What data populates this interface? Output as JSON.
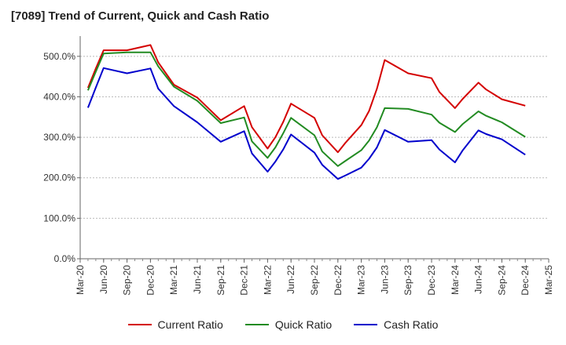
{
  "chart_data": {
    "type": "line",
    "title": "[7089]  Trend of Current, Quick and Cash Ratio",
    "xlabel": "",
    "ylabel": "",
    "ylim": [
      0,
      550
    ],
    "yticks": [
      0,
      100,
      200,
      300,
      400,
      500
    ],
    "ytick_labels": [
      "0.0%",
      "100.0%",
      "200.0%",
      "300.0%",
      "400.0%",
      "500.0%"
    ],
    "categories": [
      "Mar-20",
      "Apr-20",
      "May-20",
      "Jun-20",
      "Jul-20",
      "Aug-20",
      "Sep-20",
      "Oct-20",
      "Nov-20",
      "Dec-20",
      "Jan-21",
      "Feb-21",
      "Mar-21",
      "Apr-21",
      "May-21",
      "Jun-21",
      "Jul-21",
      "Aug-21",
      "Sep-21",
      "Oct-21",
      "Nov-21",
      "Dec-21",
      "Jan-22",
      "Feb-22",
      "Mar-22",
      "Apr-22",
      "May-22",
      "Jun-22",
      "Jul-22",
      "Aug-22",
      "Sep-22",
      "Oct-22",
      "Nov-22",
      "Dec-22",
      "Jan-23",
      "Feb-23",
      "Mar-23",
      "Apr-23",
      "May-23",
      "Jun-23",
      "Jul-23",
      "Aug-23",
      "Sep-23",
      "Oct-23",
      "Nov-23",
      "Dec-23",
      "Jan-24",
      "Feb-24",
      "Mar-24",
      "Apr-24",
      "May-24",
      "Jun-24",
      "Jul-24",
      "Aug-24",
      "Sep-24",
      "Oct-24",
      "Nov-24",
      "Dec-24",
      "Jan-25",
      "Feb-25",
      "Mar-25"
    ],
    "xtick_labels": [
      "Mar-20",
      "Jun-20",
      "Sep-20",
      "Dec-20",
      "Mar-21",
      "Jun-21",
      "Sep-21",
      "Dec-21",
      "Mar-22",
      "Jun-22",
      "Sep-22",
      "Dec-22",
      "Mar-23",
      "Jun-23",
      "Sep-23",
      "Dec-23",
      "Mar-24",
      "Jun-24",
      "Sep-24",
      "Dec-24",
      "Mar-25"
    ],
    "legend_position": "bottom",
    "series": [
      {
        "name": "Current Ratio",
        "color": "#d40000",
        "x": [
          "Apr-20",
          "May-20",
          "Jun-20",
          "Sep-20",
          "Dec-20",
          "Jan-21",
          "Mar-21",
          "Jun-21",
          "Sep-21",
          "Dec-21",
          "Jan-22",
          "Mar-22",
          "Apr-22",
          "May-22",
          "Jun-22",
          "Sep-22",
          "Oct-22",
          "Dec-22",
          "Jan-23",
          "Mar-23",
          "Apr-23",
          "May-23",
          "Jun-23",
          "Sep-23",
          "Dec-23",
          "Jan-24",
          "Mar-24",
          "Apr-24",
          "Jun-24",
          "Jul-24",
          "Sep-24",
          "Dec-24"
        ],
        "values": [
          422,
          470,
          515,
          515,
          528,
          485,
          430,
          398,
          342,
          377,
          325,
          272,
          300,
          338,
          383,
          348,
          305,
          263,
          287,
          330,
          365,
          420,
          491,
          458,
          446,
          412,
          372,
          395,
          435,
          418,
          394,
          378
        ]
      },
      {
        "name": "Quick Ratio",
        "color": "#228b22",
        "x": [
          "Apr-20",
          "May-20",
          "Jun-20",
          "Sep-20",
          "Dec-20",
          "Jan-21",
          "Mar-21",
          "Jun-21",
          "Sep-21",
          "Dec-21",
          "Jan-22",
          "Mar-22",
          "Apr-22",
          "May-22",
          "Jun-22",
          "Sep-22",
          "Oct-22",
          "Dec-22",
          "Jan-23",
          "Mar-23",
          "Apr-23",
          "May-23",
          "Jun-23",
          "Sep-23",
          "Dec-23",
          "Jan-24",
          "Mar-24",
          "Apr-24",
          "Jun-24",
          "Jul-24",
          "Sep-24",
          "Dec-24"
        ],
        "values": [
          416,
          462,
          507,
          510,
          510,
          475,
          425,
          390,
          335,
          349,
          290,
          249,
          275,
          310,
          348,
          305,
          265,
          229,
          242,
          268,
          292,
          325,
          372,
          370,
          356,
          336,
          313,
          333,
          364,
          353,
          337,
          301
        ]
      },
      {
        "name": "Cash Ratio",
        "color": "#0000cc",
        "x": [
          "Apr-20",
          "May-20",
          "Jun-20",
          "Sep-20",
          "Dec-20",
          "Jan-21",
          "Mar-21",
          "Jun-21",
          "Sep-21",
          "Dec-21",
          "Jan-22",
          "Mar-22",
          "Apr-22",
          "May-22",
          "Jun-22",
          "Sep-22",
          "Oct-22",
          "Dec-22",
          "Jan-23",
          "Mar-23",
          "Apr-23",
          "May-23",
          "Jun-23",
          "Sep-23",
          "Dec-23",
          "Jan-24",
          "Mar-24",
          "Apr-24",
          "Jun-24",
          "Jul-24",
          "Sep-24",
          "Dec-24"
        ],
        "values": [
          373,
          423,
          471,
          458,
          470,
          420,
          377,
          337,
          289,
          315,
          260,
          215,
          240,
          270,
          307,
          262,
          232,
          197,
          206,
          225,
          247,
          275,
          318,
          289,
          293,
          270,
          238,
          268,
          317,
          308,
          295,
          257
        ]
      }
    ]
  }
}
